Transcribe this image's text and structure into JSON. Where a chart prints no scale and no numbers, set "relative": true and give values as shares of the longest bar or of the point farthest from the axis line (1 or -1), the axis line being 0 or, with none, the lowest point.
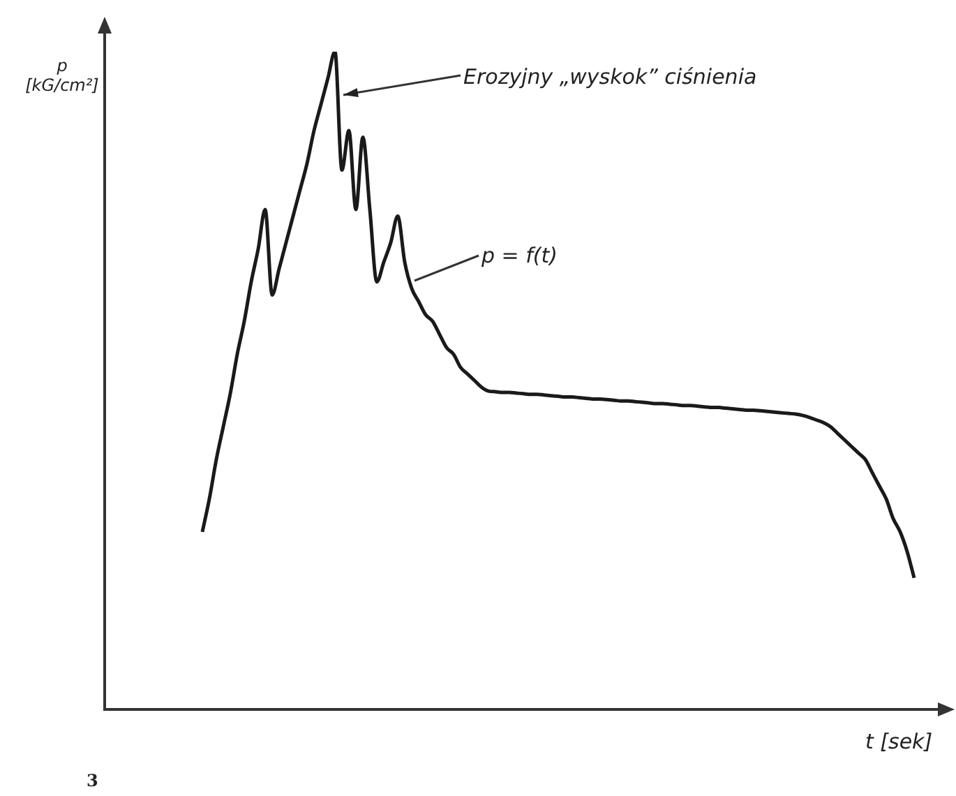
{
  "chart_data": {
    "type": "line",
    "relative": true,
    "marker": "none",
    "line_style": "solid",
    "color": "#1a1a1a",
    "xlabel": "t [sek]",
    "annotations": [
      "Erozyjny „wyskok” ciśnienia",
      "p = f(t)",
      "3",
      "p [kG/cm²]"
    ],
    "categories": [
      null,
      null,
      null,
      null,
      null,
      null,
      null,
      null,
      null,
      null,
      null,
      null,
      null,
      null,
      null,
      null,
      null,
      null,
      null,
      null,
      null,
      null,
      null,
      null,
      null,
      null,
      null,
      null,
      null,
      null,
      null,
      null,
      null,
      null,
      null,
      null,
      null,
      null,
      null,
      null,
      null,
      null,
      null,
      null,
      null,
      null,
      null,
      null,
      null,
      null,
      null,
      null,
      null,
      null,
      null,
      null,
      null,
      null,
      null,
      null,
      null,
      null,
      null,
      null,
      null,
      null,
      null,
      null,
      null,
      null,
      null,
      null,
      null,
      null,
      null,
      null,
      null,
      null,
      null,
      null,
      null,
      null,
      null,
      null,
      null,
      null,
      null,
      null,
      null,
      null,
      null,
      null,
      null,
      null,
      null,
      null,
      null,
      null,
      null,
      null,
      null,
      null,
      null
    ],
    "values": [
      0.27,
      0.32,
      0.38,
      0.43,
      0.48,
      0.54,
      0.59,
      0.65,
      0.7,
      0.76,
      0.63,
      0.67,
      0.71,
      0.75,
      0.79,
      0.83,
      0.88,
      0.92,
      0.96,
      1,
      0.82,
      0.88,
      0.76,
      0.87,
      0.76,
      0.65,
      0.68,
      0.71,
      0.75,
      0.68,
      0.64,
      0.62,
      0.6,
      0.59,
      0.57,
      0.55,
      0.54,
      0.52,
      0.51,
      0.5,
      0.49,
      0.484,
      0.483,
      0.482,
      0.482,
      0.481,
      0.48,
      0.479,
      0.479,
      0.478,
      0.477,
      0.476,
      0.475,
      0.475,
      0.474,
      0.473,
      0.472,
      0.472,
      0.471,
      0.47,
      0.469,
      0.469,
      0.468,
      0.467,
      0.466,
      0.465,
      0.465,
      0.464,
      0.463,
      0.462,
      0.462,
      0.461,
      0.46,
      0.459,
      0.459,
      0.458,
      0.457,
      0.456,
      0.455,
      0.455,
      0.454,
      0.453,
      0.452,
      0.451,
      0.45,
      0.449,
      0.447,
      0.444,
      0.44,
      0.436,
      0.43,
      0.42,
      0.41,
      0.4,
      0.39,
      0.38,
      0.36,
      0.34,
      0.32,
      0.29,
      0.27,
      0.24,
      0.2
    ]
  }
}
